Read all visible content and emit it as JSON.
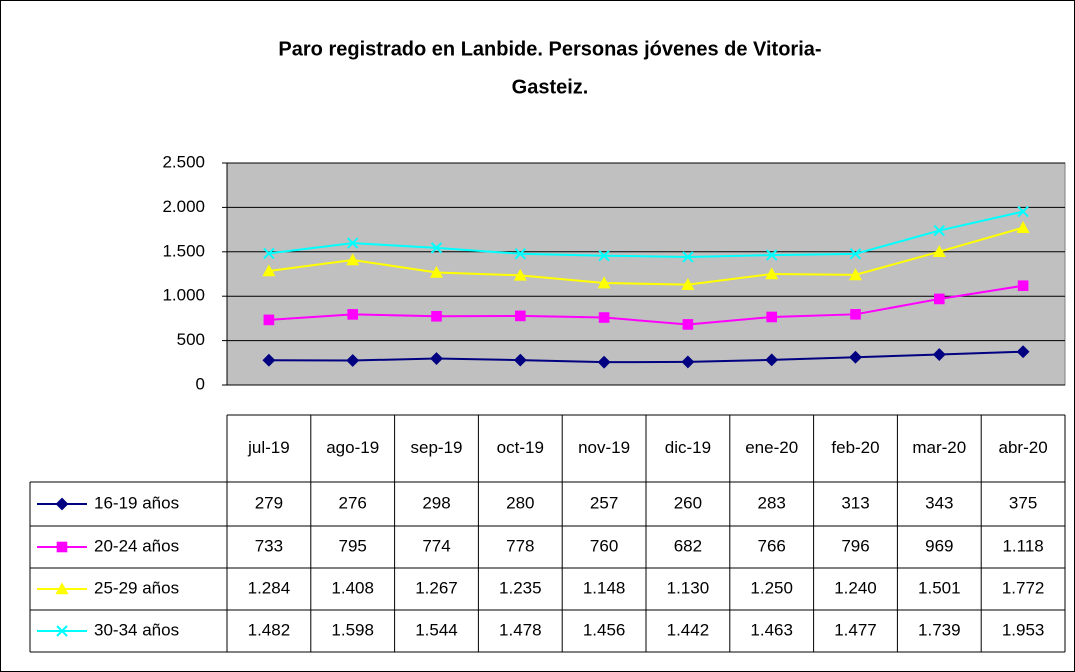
{
  "chart_data": {
    "type": "line",
    "title": [
      "Paro registrado en Lanbide. Personas jóvenes de Vitoria-",
      "Gasteiz."
    ],
    "categories": [
      "jul-19",
      "ago-19",
      "sep-19",
      "oct-19",
      "nov-19",
      "dic-19",
      "ene-20",
      "feb-20",
      "mar-20",
      "abr-20"
    ],
    "series": [
      {
        "name": "16-19 años",
        "color": "#000080",
        "marker": "diamond",
        "values": [
          279,
          276,
          298,
          280,
          257,
          260,
          283,
          313,
          343,
          375
        ],
        "value_labels": [
          "279",
          "276",
          "298",
          "280",
          "257",
          "260",
          "283",
          "313",
          "343",
          "375"
        ]
      },
      {
        "name": "20-24 años",
        "color": "#ff00ff",
        "marker": "square",
        "values": [
          733,
          795,
          774,
          778,
          760,
          682,
          766,
          796,
          969,
          1118
        ],
        "value_labels": [
          "733",
          "795",
          "774",
          "778",
          "760",
          "682",
          "766",
          "796",
          "969",
          "1.118"
        ]
      },
      {
        "name": "25-29 años",
        "color": "#ffff00",
        "marker": "triangle",
        "values": [
          1284,
          1408,
          1267,
          1235,
          1148,
          1130,
          1250,
          1240,
          1501,
          1772
        ],
        "value_labels": [
          "1.284",
          "1.408",
          "1.267",
          "1.235",
          "1.148",
          "1.130",
          "1.250",
          "1.240",
          "1.501",
          "1.772"
        ]
      },
      {
        "name": "30-34 años",
        "color": "#00ffff",
        "marker": "x",
        "values": [
          1482,
          1598,
          1544,
          1478,
          1456,
          1442,
          1463,
          1477,
          1739,
          1953
        ],
        "value_labels": [
          "1.482",
          "1.598",
          "1.544",
          "1.478",
          "1.456",
          "1.442",
          "1.463",
          "1.477",
          "1.739",
          "1.953"
        ]
      }
    ],
    "ylim": [
      0,
      2500
    ],
    "yticks": [
      0,
      500,
      {
        "value": 1000,
        "label": "1.000"
      },
      {
        "value": 1500,
        "label": "1.500"
      },
      {
        "value": 2000,
        "label": "2.000"
      },
      {
        "value": 2500,
        "label": "2.500"
      }
    ],
    "grid": true,
    "plot_background": "#c0c0c0"
  }
}
